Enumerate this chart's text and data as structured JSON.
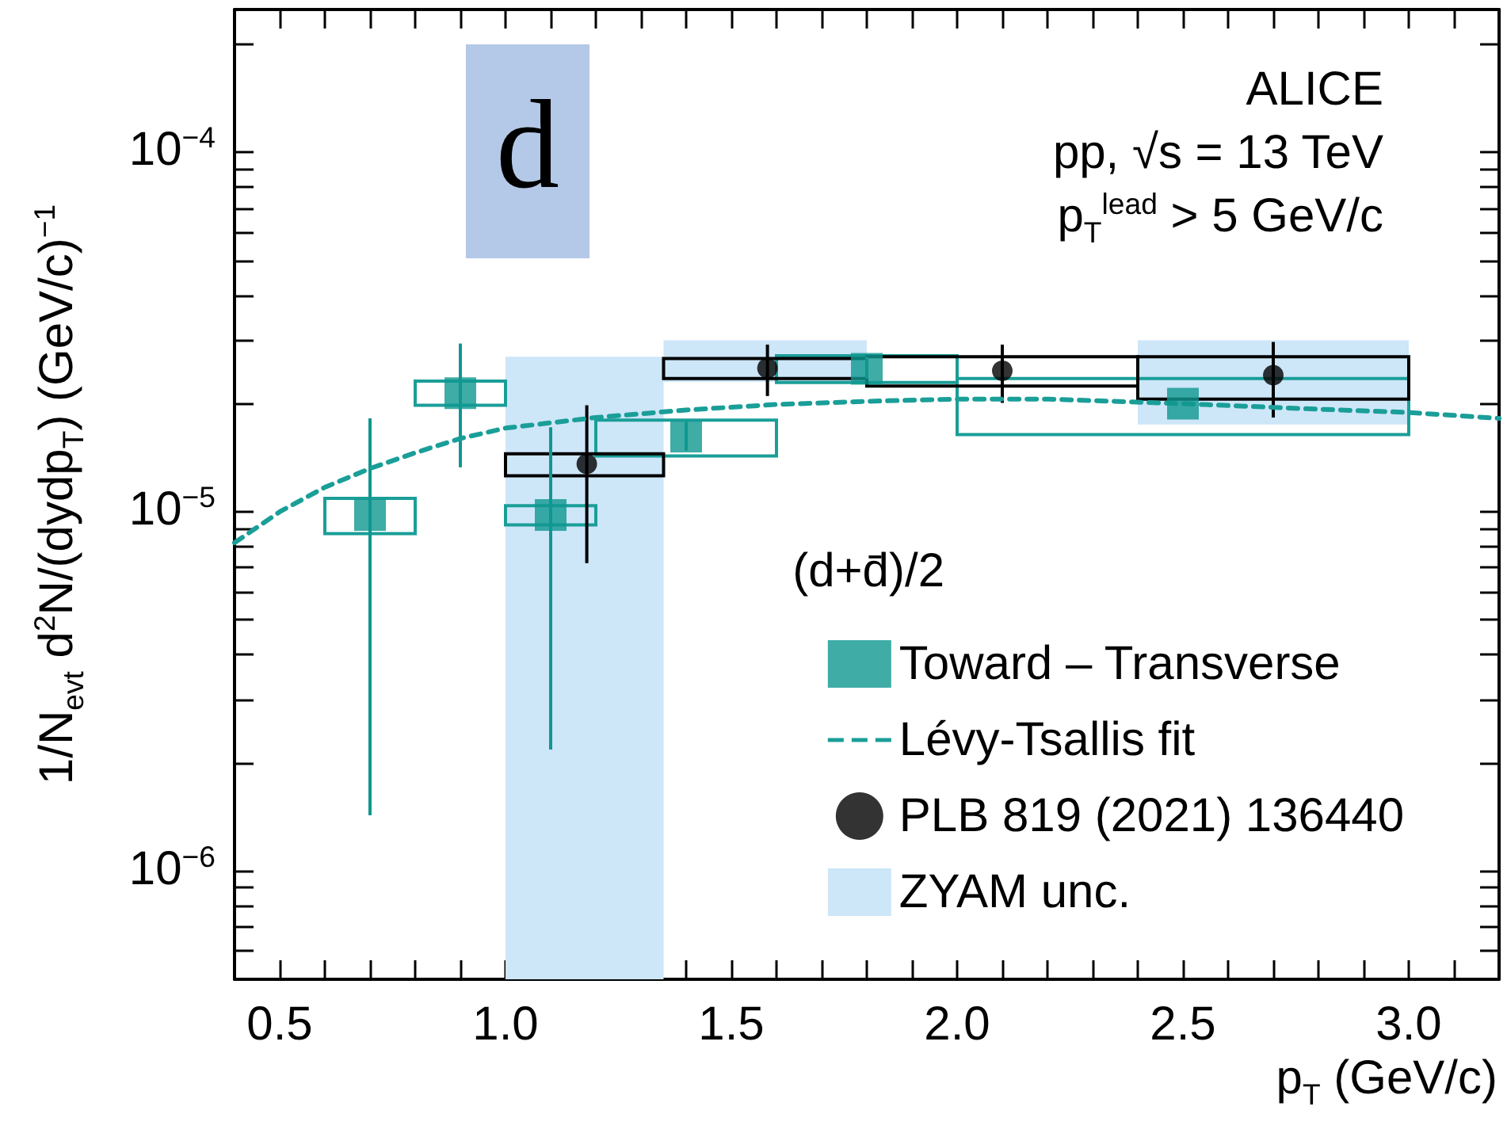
{
  "chart_data": {
    "type": "scatter",
    "xlabel": "p$_{T}$ (GeV/c)",
    "ylabel": "1/N$_{evt}$ d$^{2}$N/(dydp$_{T}$) (GeV/c)$^{−1}$",
    "legend_title": "(d+d̄)/2",
    "annotations": [
      "d",
      "ALICE",
      "pp, √s = 13 TeV",
      "p$_{T}$$^{lead}$ > 5 GeV/c"
    ],
    "xlim": [
      0.4,
      3.2
    ],
    "xticks": [
      {
        "value": 0.5,
        "label": "0.5"
      },
      {
        "value": 0.6,
        "label": null
      },
      {
        "value": 0.7,
        "label": null
      },
      {
        "value": 0.8,
        "label": null
      },
      {
        "value": 0.9,
        "label": null
      },
      {
        "value": 1,
        "label": "1.0"
      },
      {
        "value": 1.1,
        "label": null
      },
      {
        "value": 1.2,
        "label": null
      },
      {
        "value": 1.3,
        "label": null
      },
      {
        "value": 1.4,
        "label": null
      },
      {
        "value": 1.5,
        "label": "1.5"
      },
      {
        "value": 1.6,
        "label": null
      },
      {
        "value": 1.7,
        "label": null
      },
      {
        "value": 1.8,
        "label": null
      },
      {
        "value": 1.9,
        "label": null
      },
      {
        "value": 2,
        "label": "2.0"
      },
      {
        "value": 2.1,
        "label": null
      },
      {
        "value": 2.2,
        "label": null
      },
      {
        "value": 2.3,
        "label": null
      },
      {
        "value": 2.4,
        "label": null
      },
      {
        "value": 2.5,
        "label": "2.5"
      },
      {
        "value": 2.6,
        "label": null
      },
      {
        "value": 2.7,
        "label": null
      },
      {
        "value": 2.8,
        "label": null
      },
      {
        "value": 2.9,
        "label": null
      },
      {
        "value": 3,
        "label": "3.0"
      },
      {
        "value": 3.1,
        "label": null
      }
    ],
    "ylim": [
      5e-07,
      0.00025
    ],
    "yticks": [
      {
        "value": 6e-07,
        "label": null
      },
      {
        "value": 7e-07,
        "label": null
      },
      {
        "value": 8e-07,
        "label": null
      },
      {
        "value": 9e-07,
        "label": null
      },
      {
        "value": 1e-06,
        "label": "10$^{−6}$"
      },
      {
        "value": 2e-06,
        "label": null
      },
      {
        "value": 3e-06,
        "label": null
      },
      {
        "value": 4e-06,
        "label": null
      },
      {
        "value": 5e-06,
        "label": null
      },
      {
        "value": 6e-06,
        "label": null
      },
      {
        "value": 7e-06,
        "label": null
      },
      {
        "value": 8e-06,
        "label": null
      },
      {
        "value": 9e-06,
        "label": null
      },
      {
        "value": 1e-05,
        "label": "10$^{−5}$"
      },
      {
        "value": 2e-05,
        "label": null
      },
      {
        "value": 3e-05,
        "label": null
      },
      {
        "value": 4e-05,
        "label": null
      },
      {
        "value": 5e-05,
        "label": null
      },
      {
        "value": 6e-05,
        "label": null
      },
      {
        "value": 7e-05,
        "label": null
      },
      {
        "value": 8e-05,
        "label": null
      },
      {
        "value": 9e-05,
        "label": null
      },
      {
        "value": 0.0001,
        "label": "10$^{−4}$"
      },
      {
        "value": 0.0002,
        "label": null
      }
    ],
    "log": true,
    "grid": false,
    "legend": "bottom right",
    "series": [
      {
        "type": "histogram",
        "color": "#1a9e98",
        "bins": [
          0.6,
          0.8,
          1.0,
          1.2,
          1.6,
          2.0,
          3.0
        ],
        "base": [
          8.7e-06,
          1.98e-05,
          9.2e-06,
          1.43e-05,
          2.29e-05,
          1.64e-05
        ],
        "values": [
          2.2e-06,
          3.3e-06,
          1.2e-06,
          3.7e-06,
          4.3e-06,
          7.1e-06
        ]
      },
      {
        "name": "Toward – Transverse",
        "marker": "square",
        "color": "#0f9790",
        "x": [
          0.7,
          0.9,
          1.1,
          1.4,
          1.8,
          2.5
        ],
        "values": [
          9.8e-06,
          2.14e-05,
          9.8e-06,
          1.62e-05,
          2.5e-05,
          2e-05
        ],
        "errors": [
          [
            1.43e-06,
            1.82e-05
          ],
          [
            1.33e-05,
            2.94e-05
          ],
          [
            2.18e-06,
            1.72e-05
          ],
          [
            1.48e-05,
            1.78e-05
          ],
          [
            2.35e-05,
            2.7e-05
          ],
          null
        ]
      },
      {
        "name": "Lévy-Tsallis fit",
        "type": "line",
        "marker": "none",
        "line_style": "dashed",
        "color": "#1a9e98",
        "x": [
          0.4,
          0.5,
          0.6,
          0.7,
          0.8,
          0.9,
          1.0,
          1.2,
          1.4,
          1.6,
          1.8,
          2.0,
          2.2,
          2.5,
          2.8,
          3.0,
          3.2
        ],
        "values": [
          8.2e-06,
          1e-05,
          1.17e-05,
          1.32e-05,
          1.46e-05,
          1.6e-05,
          1.71e-05,
          1.83e-05,
          1.92e-05,
          1.99e-05,
          2.03e-05,
          2.06e-05,
          2.06e-05,
          2e-05,
          1.93e-05,
          1.89e-05,
          1.82e-05
        ]
      },
      {
        "type": "histogram",
        "color": "#000000",
        "bins": [
          1.0,
          1.35,
          1.8,
          2.4,
          3.0
        ],
        "base": [
          1.26e-05,
          2.35e-05,
          2.24e-05,
          2.06e-05
        ],
        "values": [
          1.9e-06,
          3.2e-06,
          4.6e-06,
          6.4e-06
        ]
      },
      {
        "name": "PLB 819 (2021) 136440",
        "marker": "circle",
        "color": "#000000",
        "x": [
          1.18,
          1.58,
          2.1,
          2.7
        ],
        "values": [
          1.36e-05,
          2.51e-05,
          2.47e-05,
          2.4e-05
        ],
        "errors": [
          [
            7.2e-06,
            1.98e-05
          ],
          [
            2.1e-05,
            2.92e-05
          ],
          [
            2.01e-05,
            2.92e-05
          ],
          [
            1.83e-05,
            2.97e-05
          ]
        ]
      },
      {
        "name": "ZYAM unc.",
        "type": "histogram",
        "color": "#cde6f8",
        "bins": [
          1.0,
          1.35,
          1.8,
          2.4,
          3.0
        ],
        "base": [
          5e-07,
          2.3e-05,
          null,
          1.75e-05
        ],
        "values": [
          2.65e-05,
          7e-06,
          null,
          1.25e-05
        ]
      }
    ]
  }
}
